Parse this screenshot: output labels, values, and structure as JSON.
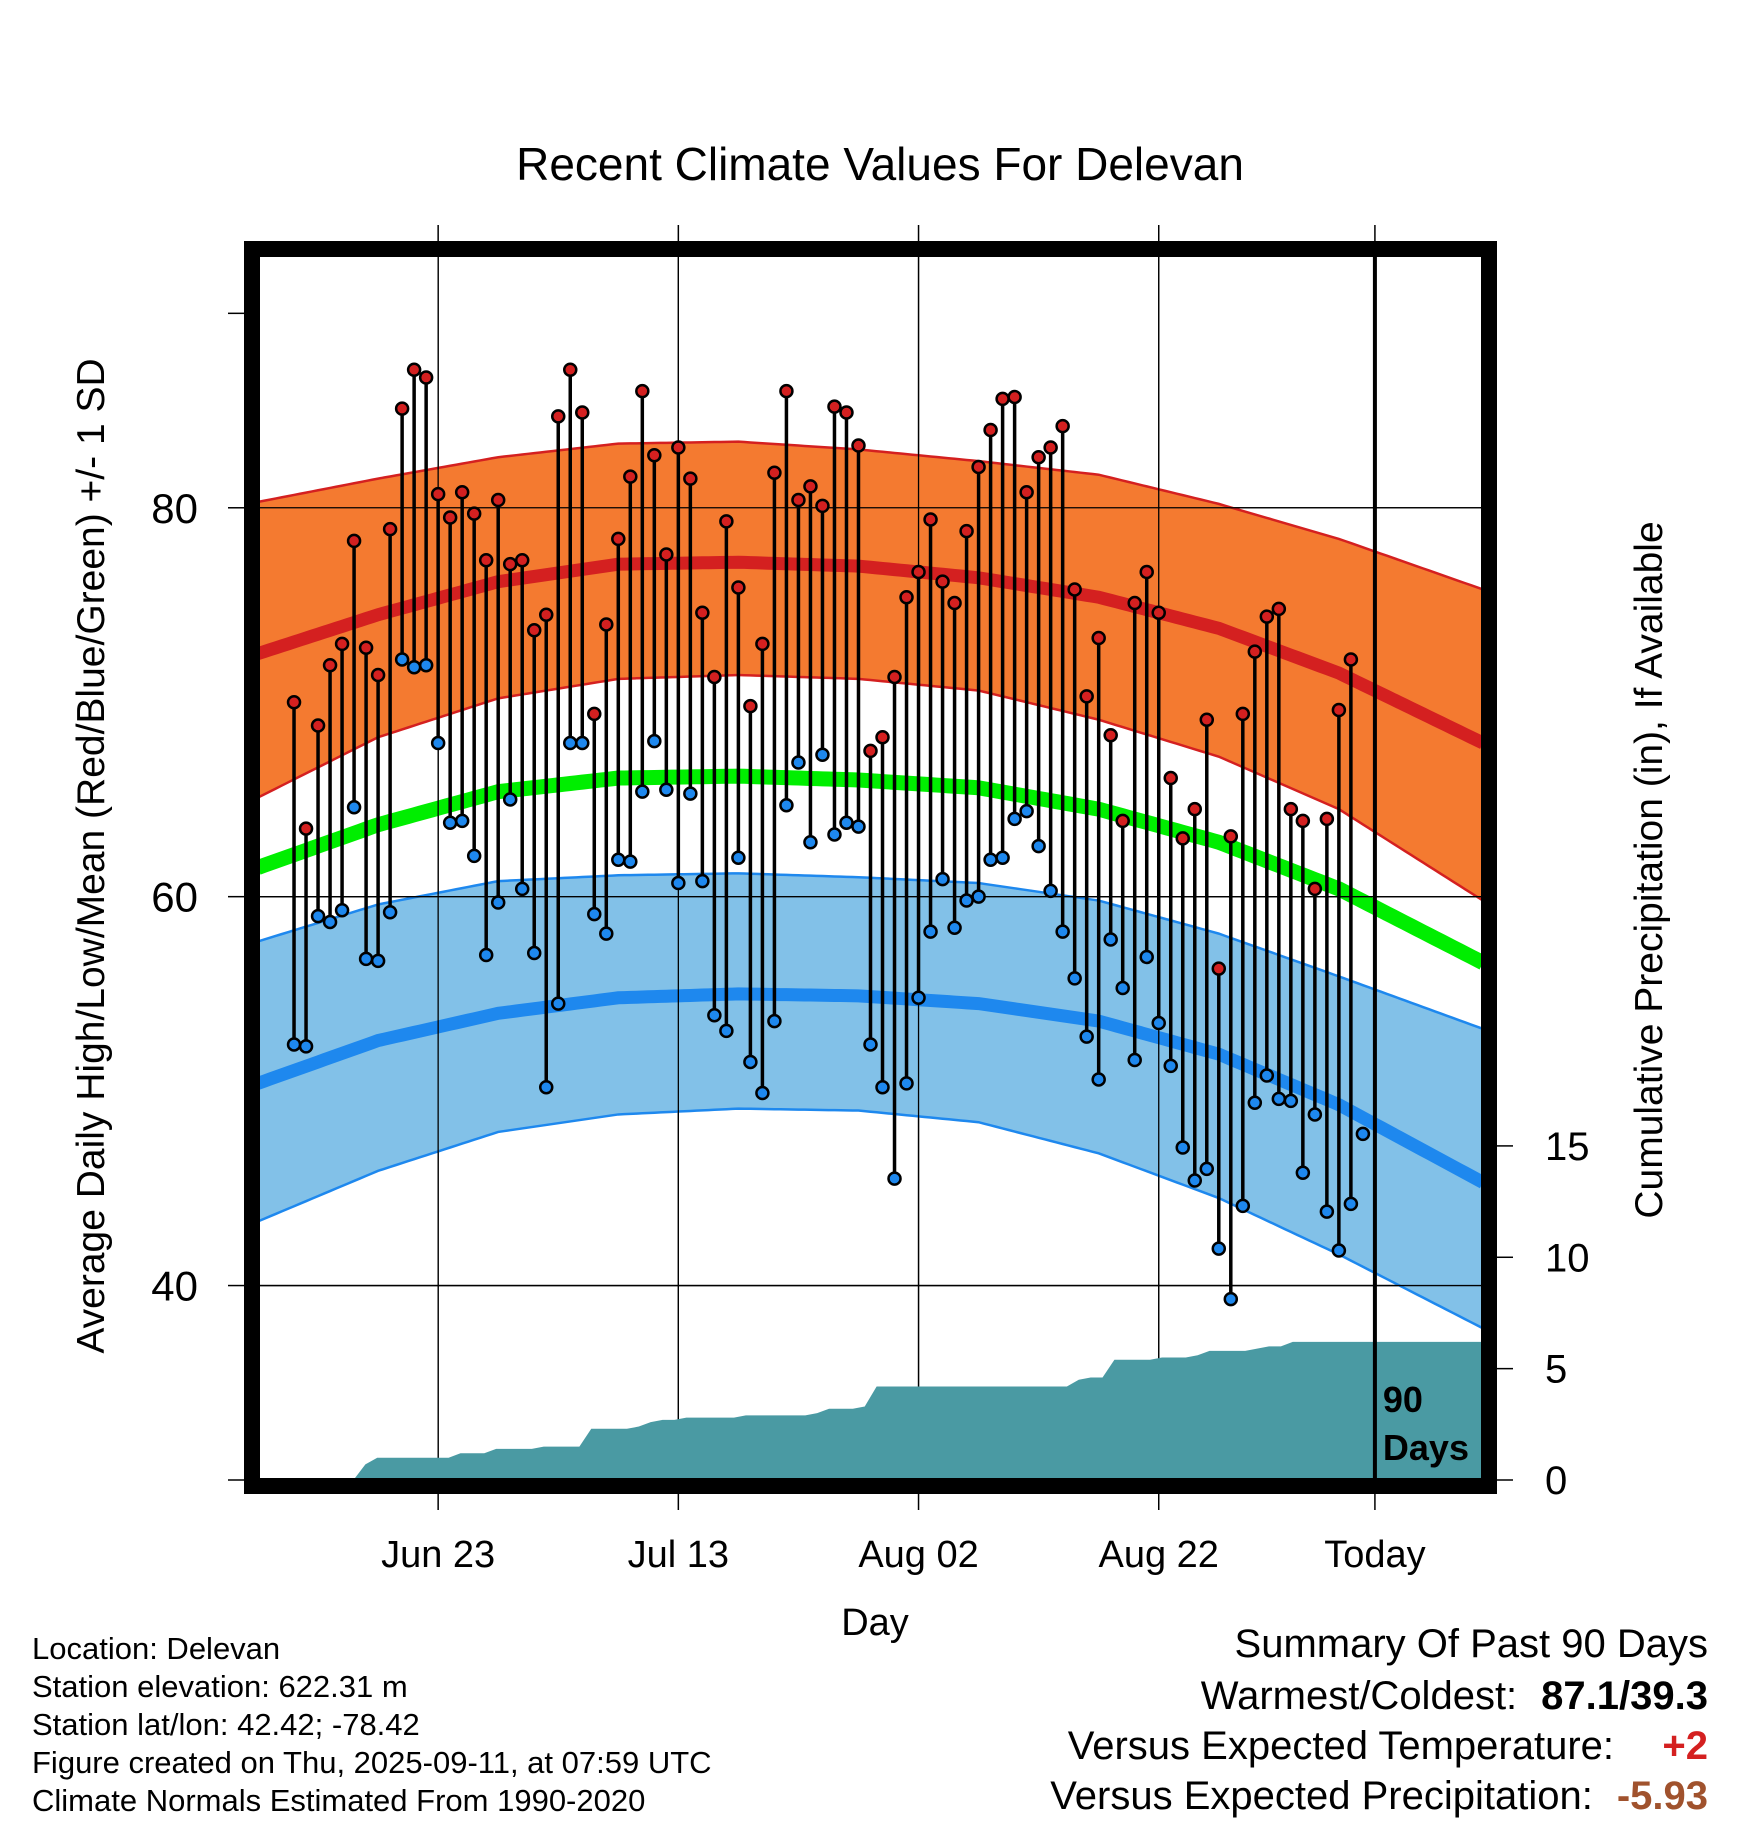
{
  "chart_data": {
    "type": "line",
    "title": "Recent Climate Values For Delevan",
    "xlabel": "Day",
    "ylabel": "Average Daily High/Low/Mean (Red/Blue/Green) +/- 1 SD",
    "y2label": "Cumulative Precipitation (in), If Available",
    "x_range_days": [
      -93,
      9
    ],
    "ylim": [
      30,
      93
    ],
    "y2lim": [
      0,
      55
    ],
    "x_ticks": [
      {
        "day": -78,
        "label": "Jun 23"
      },
      {
        "day": -58,
        "label": "Jul 13"
      },
      {
        "day": -38,
        "label": "Aug 02"
      },
      {
        "day": -18,
        "label": "Aug 22"
      },
      {
        "day": 0,
        "label": "Today"
      }
    ],
    "y_ticks": [
      40,
      60,
      80
    ],
    "y2_ticks": [
      0,
      5,
      10,
      15
    ],
    "today_marker": {
      "day": 0,
      "label_line1": "90",
      "label_line2": "Days"
    },
    "colors": {
      "high_band": "#f47a30",
      "high_band_edge": "#d42020",
      "high_mean": "#d42020",
      "low_band": "#82c1e8",
      "low_band_edge": "#1e88ee",
      "low_mean": "#1e88ee",
      "mean_normal": "#00ee00",
      "precip": "#4a9aa3",
      "high_marker": "#d42020",
      "low_marker": "#1e88ee"
    },
    "normals": {
      "days": [
        -93,
        -83,
        -73,
        -63,
        -53,
        -43,
        -33,
        -23,
        -13,
        -3,
        9
      ],
      "high_mean": [
        72.5,
        74.5,
        76.2,
        77.1,
        77.2,
        77.0,
        76.4,
        75.4,
        73.8,
        71.5,
        67.9
      ],
      "high_plus_sd": [
        80.3,
        81.5,
        82.6,
        83.3,
        83.4,
        83.0,
        82.4,
        81.7,
        80.2,
        78.4,
        75.8
      ],
      "high_minus_sd": [
        65.1,
        68.2,
        70.2,
        71.2,
        71.4,
        71.2,
        70.6,
        69.1,
        67.2,
        64.5,
        59.8
      ],
      "mean": [
        61.5,
        63.7,
        65.4,
        66.1,
        66.2,
        66.0,
        65.6,
        64.5,
        62.8,
        60.4,
        56.6
      ],
      "low_mean": [
        50.4,
        52.6,
        54.0,
        54.8,
        55.0,
        54.9,
        54.5,
        53.6,
        51.9,
        49.3,
        45.3
      ],
      "low_plus_sd": [
        57.7,
        59.6,
        60.8,
        61.1,
        61.2,
        61.0,
        60.7,
        59.8,
        58.1,
        55.9,
        53.2
      ],
      "low_minus_sd": [
        43.3,
        45.9,
        47.9,
        48.8,
        49.1,
        49.0,
        48.4,
        46.8,
        44.5,
        41.6,
        37.8
      ]
    },
    "series": [
      {
        "name": "High",
        "values": [
          70.0,
          63.5,
          68.8,
          71.9,
          73.0,
          78.3,
          72.8,
          71.4,
          78.9,
          85.1,
          87.1,
          86.7,
          80.7,
          79.5,
          80.8,
          79.7,
          77.3,
          80.4,
          77.1,
          77.3,
          73.7,
          74.5,
          84.7,
          87.1,
          84.9,
          69.4,
          74.0,
          78.4,
          81.6,
          86.0,
          82.7,
          77.6,
          83.1,
          81.5,
          74.6,
          71.3,
          79.3,
          75.9,
          69.8,
          73.0,
          81.8,
          86.0,
          80.4,
          81.1,
          80.1,
          85.2,
          84.9,
          83.2,
          67.5,
          68.2,
          71.3,
          75.4,
          76.7,
          79.4,
          76.2,
          75.1,
          78.8,
          82.1,
          84.0,
          85.6,
          85.7,
          80.8,
          82.6,
          83.1,
          84.2,
          75.8,
          70.3,
          73.3,
          68.3,
          63.9,
          75.1,
          76.7,
          74.6,
          66.1,
          63.0,
          64.5,
          69.1,
          56.3,
          63.1,
          69.4,
          72.6,
          74.4,
          74.8,
          64.5,
          63.9,
          60.4,
          64.0,
          69.6,
          72.2,
          null
        ]
      },
      {
        "name": "Low",
        "values": [
          52.4,
          52.3,
          59.0,
          58.7,
          59.3,
          64.6,
          56.8,
          56.7,
          59.2,
          72.2,
          71.8,
          71.9,
          67.9,
          63.8,
          63.9,
          62.1,
          57.0,
          59.7,
          65.0,
          60.4,
          57.1,
          50.2,
          54.5,
          67.9,
          67.9,
          59.1,
          58.1,
          61.9,
          61.8,
          65.4,
          68.0,
          65.5,
          60.7,
          65.3,
          60.8,
          53.9,
          53.1,
          62.0,
          51.5,
          49.9,
          53.6,
          64.7,
          66.9,
          62.8,
          67.3,
          63.2,
          63.8,
          63.6,
          52.4,
          50.2,
          45.5,
          50.4,
          54.8,
          58.2,
          60.9,
          58.4,
          59.8,
          60.0,
          61.9,
          62.0,
          64.0,
          64.4,
          62.6,
          60.3,
          58.2,
          55.8,
          52.8,
          50.6,
          57.8,
          55.3,
          51.6,
          56.9,
          53.5,
          51.3,
          47.1,
          45.4,
          46.0,
          41.9,
          39.3,
          44.1,
          49.4,
          50.8,
          49.6,
          49.5,
          45.8,
          48.8,
          43.8,
          41.8,
          44.2,
          47.8
        ]
      },
      {
        "name": "Cumulative Precipitation",
        "values": [
          0,
          0,
          0,
          0,
          0,
          0,
          0.7,
          1.0,
          1.0,
          1.0,
          1.0,
          1.0,
          1.0,
          1.0,
          1.2,
          1.2,
          1.2,
          1.4,
          1.4,
          1.4,
          1.4,
          1.5,
          1.5,
          1.5,
          1.5,
          2.3,
          2.3,
          2.3,
          2.3,
          2.4,
          2.6,
          2.7,
          2.7,
          2.8,
          2.8,
          2.8,
          2.8,
          2.8,
          2.9,
          2.9,
          2.9,
          2.9,
          2.9,
          2.9,
          3.0,
          3.2,
          3.2,
          3.2,
          3.3,
          4.2,
          4.2,
          4.2,
          4.2,
          4.2,
          4.2,
          4.2,
          4.2,
          4.2,
          4.2,
          4.2,
          4.2,
          4.2,
          4.2,
          4.2,
          4.2,
          4.2,
          4.5,
          4.6,
          4.6,
          5.4,
          5.4,
          5.4,
          5.4,
          5.5,
          5.5,
          5.5,
          5.6,
          5.8,
          5.8,
          5.8,
          5.8,
          5.9,
          6.0,
          6.0,
          6.2,
          6.2,
          6.2,
          6.2,
          6.2,
          6.2,
          6.2,
          6.2,
          6.2,
          6.2,
          6.2,
          6.2,
          6.2,
          6.2,
          6.2,
          6.2,
          6.2
        ]
      }
    ]
  },
  "info": {
    "location": "Location: Delevan",
    "elevation": "Station elevation: 622.31 m",
    "latlon": "Station lat/lon: 42.42; -78.42",
    "created": "Figure created on Thu, 2025-09-11, at 07:59 UTC",
    "normals": "Climate Normals Estimated From 1990-2020"
  },
  "summary": {
    "title": "Summary Of Past 90 Days",
    "warm_cold_label": "Warmest/Coldest:",
    "warm_cold_value": "87.1/39.3",
    "temp_label": "Versus Expected Temperature:",
    "temp_value": "+2",
    "temp_color": "#d42020",
    "precip_label": "Versus Expected Precipitation:",
    "precip_value": "-5.93",
    "precip_color": "#a0522d"
  }
}
